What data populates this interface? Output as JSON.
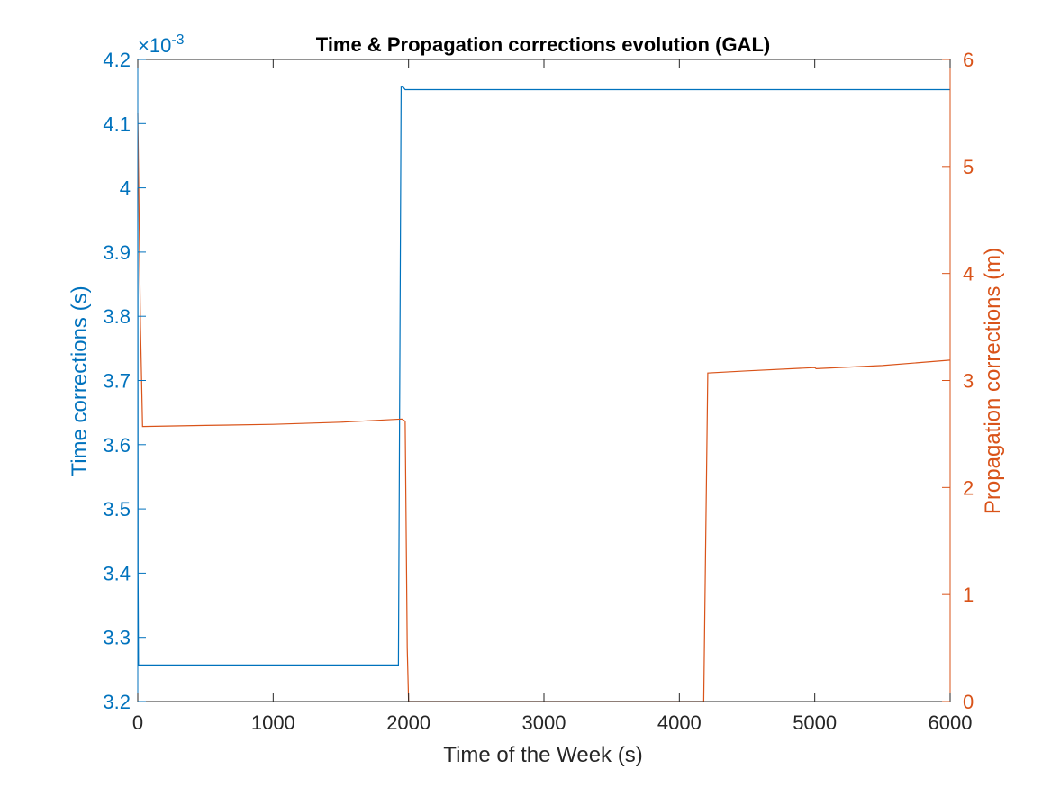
{
  "chart_data": {
    "type": "line",
    "title": "Time & Propagation corrections evolution (GAL)",
    "xlabel": "Time of the Week (s)",
    "xlim": [
      0,
      6000
    ],
    "xticks": [
      0,
      1000,
      2000,
      3000,
      4000,
      5000,
      6000
    ],
    "x_tick_labels": [
      "0",
      "1000",
      "2000",
      "3000",
      "4000",
      "5000",
      "6000"
    ],
    "left_axis": {
      "label": "Time corrections (s)",
      "ylim": [
        3.2,
        4.2
      ],
      "yticks": [
        3.2,
        3.3,
        3.4,
        3.5,
        3.6,
        3.7,
        3.8,
        3.9,
        4.0,
        4.1,
        4.2
      ],
      "tick_labels": [
        "3.2",
        "3.3",
        "3.4",
        "3.5",
        "3.6",
        "3.7",
        "3.8",
        "3.9",
        "4",
        "4.1",
        "4.2"
      ],
      "exponent_label": "×10",
      "exponent_power": "-3",
      "color": "#0072BD"
    },
    "right_axis": {
      "label": "Propagation corrections (m)",
      "ylim": [
        0,
        6
      ],
      "yticks": [
        0,
        1,
        2,
        3,
        4,
        5,
        6
      ],
      "tick_labels": [
        "0",
        "1",
        "2",
        "3",
        "4",
        "5",
        "6"
      ],
      "color": "#D95319"
    },
    "series": [
      {
        "axis": "left",
        "color": "#0072BD",
        "x": [
          0,
          2,
          5,
          1925,
          1945,
          1960,
          1975,
          2000,
          6000
        ],
        "y": [
          4.0,
          3.4,
          3.257,
          3.257,
          4.157,
          4.157,
          4.153,
          4.153,
          4.153
        ]
      },
      {
        "axis": "right",
        "color": "#D95319",
        "x": [
          0,
          20,
          35,
          500,
          1000,
          1500,
          1950,
          1975,
          1990,
          2000,
          3000,
          4000,
          4180,
          4210,
          4500,
          5000,
          5010,
          5500,
          6000
        ],
        "y": [
          5.5,
          3.5,
          2.57,
          2.58,
          2.59,
          2.61,
          2.64,
          2.62,
          0.5,
          0,
          0,
          0,
          0,
          3.07,
          3.09,
          3.12,
          3.11,
          3.14,
          3.19
        ]
      }
    ],
    "grid": false,
    "legend": "none"
  }
}
